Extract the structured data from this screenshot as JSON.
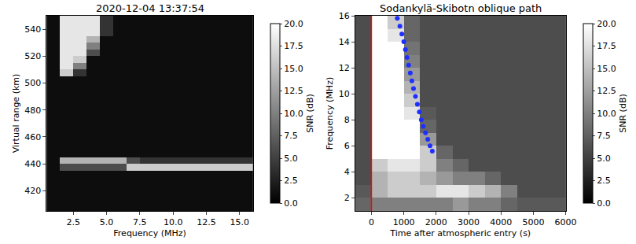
{
  "chart_data": [
    {
      "type": "heatmap",
      "title": "2020-12-04 13:37:54",
      "x_label": "Frequency (MHz)",
      "y_label": "Virtual range (km)",
      "xlim": [
        0.5,
        16
      ],
      "ylim": [
        405,
        550
      ],
      "xticks": [
        {
          "value": 2.5,
          "label": "2.5"
        },
        {
          "value": 5,
          "label": "5.0"
        },
        {
          "value": 7.5,
          "label": "7.5"
        },
        {
          "value": 10,
          "label": "10.0"
        },
        {
          "value": 12.5,
          "label": "12.5"
        },
        {
          "value": 15,
          "label": "15.0"
        }
      ],
      "yticks": [
        420,
        440,
        460,
        480,
        500,
        520,
        540
      ],
      "x": [
        1,
        2,
        3,
        4,
        5,
        6,
        7,
        8,
        9,
        10,
        11,
        12,
        13,
        14,
        15,
        16
      ],
      "y": [
        407.5,
        412.5,
        417.5,
        422.5,
        427.5,
        432.5,
        437.5,
        442.5,
        447.5,
        452.5,
        457.5,
        462.5,
        467.5,
        472.5,
        477.5,
        482.5,
        487.5,
        492.5,
        497.5,
        502.5,
        507.5,
        512.5,
        517.5,
        522.5,
        527.5,
        532.5,
        537.5,
        542.5,
        547.5
      ],
      "z": [
        [
          1,
          1,
          1,
          1,
          1,
          1,
          1,
          1,
          1,
          1,
          1,
          1,
          1,
          1,
          1,
          1
        ],
        [
          1,
          1,
          1,
          1,
          1,
          1,
          1,
          1,
          1,
          1,
          1,
          1,
          1,
          1,
          1,
          1
        ],
        [
          1,
          1,
          1,
          1,
          1,
          1,
          1,
          1,
          1,
          1,
          1,
          1,
          1,
          1,
          1,
          1
        ],
        [
          1,
          1,
          1,
          1,
          1,
          1,
          1,
          1,
          1,
          1,
          1,
          1,
          1,
          1,
          1,
          1
        ],
        [
          1,
          1,
          1,
          1,
          1,
          1,
          1,
          1,
          1,
          1,
          1,
          1,
          1,
          1,
          1,
          1
        ],
        [
          1,
          1,
          1,
          1,
          1,
          1,
          1,
          1,
          1,
          1,
          1,
          1,
          1,
          1,
          1,
          1
        ],
        [
          1,
          6,
          6,
          6,
          6,
          6,
          16,
          16,
          16,
          16,
          16,
          16,
          16,
          16,
          16,
          16
        ],
        [
          1,
          14,
          14,
          14,
          14,
          14,
          6,
          4,
          4,
          4,
          4,
          4,
          4,
          4,
          4,
          4
        ],
        [
          1,
          1,
          1,
          1,
          1,
          1,
          1,
          1,
          1,
          1,
          1,
          1,
          1,
          1,
          1,
          1
        ],
        [
          1,
          1,
          1,
          1,
          1,
          1,
          1,
          1,
          1,
          1,
          1,
          1,
          1,
          1,
          1,
          1
        ],
        [
          1,
          1,
          1,
          1,
          1,
          1,
          1,
          1,
          1,
          1,
          1,
          1,
          1,
          1,
          1,
          1
        ],
        [
          1,
          1,
          1,
          1,
          1,
          1,
          1,
          1,
          1,
          1,
          1,
          1,
          1,
          1,
          1,
          1
        ],
        [
          1,
          1,
          1,
          1,
          1,
          1,
          1,
          1,
          1,
          1,
          1,
          1,
          1,
          1,
          1,
          1
        ],
        [
          1,
          1,
          1,
          1,
          1,
          1,
          1,
          1,
          1,
          1,
          1,
          1,
          1,
          1,
          1,
          1
        ],
        [
          1,
          1,
          1,
          1,
          1,
          1,
          1,
          1,
          1,
          1,
          1,
          1,
          1,
          1,
          1,
          1
        ],
        [
          1,
          1,
          1,
          1,
          1,
          1,
          1,
          1,
          1,
          1,
          1,
          1,
          1,
          1,
          1,
          1
        ],
        [
          1,
          1,
          1,
          1,
          1,
          1,
          1,
          1,
          1,
          1,
          1,
          1,
          1,
          1,
          1,
          1
        ],
        [
          1,
          1,
          1,
          1,
          1,
          1,
          1,
          1,
          1,
          1,
          1,
          1,
          1,
          1,
          1,
          1
        ],
        [
          1,
          1,
          1,
          1,
          1,
          1,
          1,
          1,
          1,
          1,
          1,
          1,
          1,
          1,
          1,
          1
        ],
        [
          1,
          1,
          1,
          1,
          1,
          1,
          1,
          1,
          1,
          1,
          1,
          1,
          1,
          1,
          1,
          1
        ],
        [
          1,
          16,
          4,
          1,
          1,
          1,
          1,
          1,
          1,
          1,
          1,
          1,
          1,
          1,
          1,
          1
        ],
        [
          1,
          18,
          10,
          1,
          1,
          1,
          1,
          1,
          1,
          1,
          1,
          1,
          1,
          1,
          1,
          1
        ],
        [
          1,
          18,
          16,
          1,
          1,
          1,
          1,
          1,
          1,
          1,
          1,
          1,
          1,
          1,
          1,
          1
        ],
        [
          1,
          18,
          18,
          6,
          1,
          1,
          1,
          1,
          1,
          1,
          1,
          1,
          1,
          1,
          1,
          1
        ],
        [
          1,
          18,
          18,
          10,
          1,
          1,
          1,
          1,
          1,
          1,
          1,
          1,
          1,
          1,
          1,
          1
        ],
        [
          1,
          18,
          18,
          14,
          1,
          1,
          1,
          1,
          1,
          1,
          1,
          1,
          1,
          1,
          1,
          1
        ],
        [
          1,
          18,
          18,
          18,
          4,
          1,
          1,
          1,
          1,
          1,
          1,
          1,
          1,
          1,
          1,
          1
        ],
        [
          1,
          18,
          18,
          18,
          4,
          1,
          1,
          1,
          1,
          1,
          1,
          1,
          1,
          1,
          1,
          1
        ],
        [
          1,
          18,
          18,
          18,
          4,
          1,
          1,
          1,
          1,
          1,
          1,
          1,
          1,
          1,
          1,
          1
        ]
      ],
      "colorbar": {
        "title": "SNR (dB)",
        "range": [
          0,
          20
        ],
        "ticks": [
          {
            "value": 0,
            "label": "0.0"
          },
          {
            "value": 2.5,
            "label": "2.5"
          },
          {
            "value": 5,
            "label": "5.0"
          },
          {
            "value": 7.5,
            "label": "7.5"
          },
          {
            "value": 10,
            "label": "10.0"
          },
          {
            "value": 12.5,
            "label": "12.5"
          },
          {
            "value": 15,
            "label": "15.0"
          },
          {
            "value": 17.5,
            "label": "17.5"
          },
          {
            "value": 20,
            "label": "20.0"
          }
        ]
      }
    },
    {
      "type": "heatmap",
      "title": "Sodankylä-Skibotn oblique path",
      "x_label": "Time after atmospheric entry (s)",
      "y_label": "Frequency (MHz)",
      "xlim": [
        -500,
        6000
      ],
      "ylim": [
        1,
        16
      ],
      "xticks": [
        0,
        1000,
        2000,
        3000,
        4000,
        5000,
        6000
      ],
      "yticks": [
        2,
        4,
        6,
        8,
        10,
        12,
        14,
        16
      ],
      "x": [
        -250,
        250,
        750,
        1250,
        1750,
        2250,
        2750,
        3250,
        3750,
        4250,
        4750,
        5250,
        5750
      ],
      "y": [
        1.5,
        2.5,
        3.5,
        4.5,
        5.5,
        6.5,
        7.5,
        8.5,
        9.5,
        10.5,
        11.5,
        12.5,
        13.5,
        14.5,
        15.5
      ],
      "z": [
        [
          8,
          10,
          10,
          10,
          10,
          10,
          12,
          10,
          10,
          8,
          7,
          7,
          7
        ],
        [
          7,
          14,
          16,
          16,
          16,
          18,
          18,
          16,
          14,
          10,
          6,
          6,
          6
        ],
        [
          6,
          14,
          16,
          16,
          14,
          12,
          10,
          10,
          8,
          6,
          6,
          6,
          6
        ],
        [
          6,
          16,
          18,
          18,
          16,
          10,
          8,
          6,
          6,
          6,
          6,
          6,
          6
        ],
        [
          6,
          20,
          20,
          20,
          16,
          8,
          6,
          6,
          6,
          6,
          6,
          6,
          6
        ],
        [
          6,
          20,
          20,
          20,
          12,
          6,
          6,
          6,
          6,
          6,
          6,
          6,
          6
        ],
        [
          6,
          20,
          20,
          20,
          8,
          6,
          6,
          6,
          6,
          6,
          6,
          6,
          6
        ],
        [
          6,
          20,
          20,
          18,
          7,
          6,
          6,
          6,
          6,
          6,
          6,
          6,
          6
        ],
        [
          6,
          20,
          20,
          16,
          6,
          6,
          6,
          6,
          6,
          6,
          6,
          6,
          6
        ],
        [
          6,
          20,
          20,
          14,
          6,
          6,
          6,
          6,
          6,
          6,
          6,
          6,
          6
        ],
        [
          6,
          20,
          20,
          12,
          6,
          6,
          6,
          6,
          6,
          6,
          6,
          6,
          6
        ],
        [
          6,
          20,
          20,
          10,
          6,
          6,
          6,
          6,
          6,
          6,
          6,
          6,
          6
        ],
        [
          6,
          20,
          20,
          9,
          6,
          6,
          6,
          6,
          6,
          6,
          6,
          6,
          6
        ],
        [
          6,
          20,
          18,
          8,
          6,
          6,
          6,
          6,
          6,
          6,
          6,
          6,
          6
        ],
        [
          6,
          20,
          16,
          8,
          6,
          6,
          6,
          6,
          6,
          6,
          6,
          6,
          6
        ]
      ],
      "colorbar": {
        "title": "SNR (dB)",
        "range": [
          0,
          20
        ],
        "ticks": [
          {
            "value": 0,
            "label": "0.0"
          },
          {
            "value": 2.5,
            "label": "2.5"
          },
          {
            "value": 5,
            "label": "5.0"
          },
          {
            "value": 7.5,
            "label": "7.5"
          },
          {
            "value": 10,
            "label": "10.0"
          },
          {
            "value": 12.5,
            "label": "12.5"
          },
          {
            "value": 15,
            "label": "15.0"
          },
          {
            "value": 17.5,
            "label": "17.5"
          },
          {
            "value": 20,
            "label": "20.0"
          }
        ]
      },
      "vlines": [
        {
          "value": 0,
          "color": "red"
        }
      ],
      "series": [
        {
          "type": "scatter",
          "color": "#1f2fff",
          "marker": "circle",
          "x": [
            800,
            880,
            940,
            1000,
            1050,
            1100,
            1150,
            1200,
            1250,
            1300,
            1360,
            1420,
            1480,
            1540,
            1600,
            1670,
            1740,
            1810,
            1880
          ],
          "values": [
            15.8,
            15.2,
            14.6,
            14.0,
            13.4,
            12.8,
            12.2,
            11.6,
            11.0,
            10.4,
            9.8,
            9.2,
            8.6,
            8.0,
            7.5,
            7.0,
            6.5,
            6.0,
            5.6
          ]
        }
      ]
    }
  ]
}
